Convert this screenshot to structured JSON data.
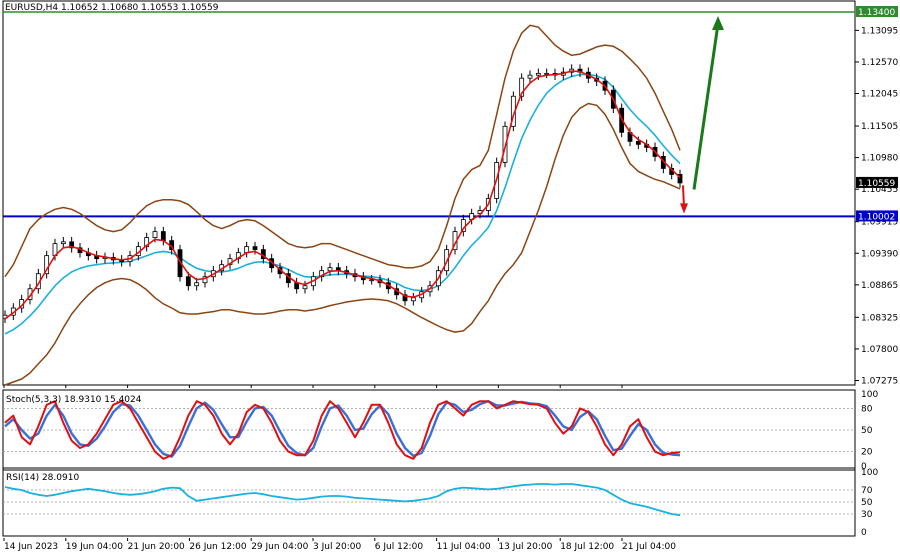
{
  "symbol_info": "EURUSD,H4  1.10652 1.10680 1.10553 1.10559",
  "colors": {
    "price_candles": "#000000",
    "bollinger": "#8b4513",
    "ma_fast": "#e01010",
    "ma_slow": "#1ab0e0",
    "resistance_line": "#2e8b2e",
    "support_line": "#0000cc",
    "arrow_up": "#1a7a1a",
    "arrow_down": "#e01010",
    "stoch_main": "#e01010",
    "stoch_signal": "#3a6fd8",
    "rsi": "#1ab0e0"
  },
  "chart_data": [
    {
      "type": "line",
      "panel": "price",
      "ylim": [
        1.072,
        1.135
      ],
      "y_ticks": [
        "1.13095",
        "1.12570",
        "1.12045",
        "1.11505",
        "1.10980",
        "1.10455",
        "1.09915",
        "1.09390",
        "1.08865",
        "1.08325",
        "1.07800",
        "1.07275"
      ],
      "x_tick_labels": [
        "14 Jun 2023",
        "19 Jun 04:00",
        "21 Jun 20:00",
        "26 Jun 12:00",
        "29 Jun 04:00",
        "3 Jul 20:00",
        "6 Jul 12:00",
        "11 Jul 04:00",
        "13 Jul 20:00",
        "18 Jul 12:00",
        "21 Jul 04:00"
      ],
      "horizontal_lines": [
        {
          "value": 1.134,
          "label": "1.13400",
          "style": "resistance"
        },
        {
          "value": 1.10002,
          "label": "1.10002",
          "style": "support"
        }
      ],
      "current_price": {
        "value": 1.10559,
        "label": "1.10559"
      },
      "close": [
        1.0836,
        1.0848,
        1.0862,
        1.088,
        1.0905,
        1.0935,
        1.0955,
        1.0958,
        1.0948,
        1.094,
        1.0935,
        1.093,
        1.0932,
        1.0928,
        1.0925,
        1.0935,
        1.095,
        1.0965,
        1.0975,
        1.096,
        1.0945,
        1.09,
        1.0885,
        1.089,
        1.09,
        1.091,
        1.092,
        1.093,
        1.094,
        1.095,
        1.0945,
        1.093,
        1.0915,
        1.0905,
        1.089,
        1.088,
        1.0885,
        1.09,
        1.091,
        1.0915,
        1.091,
        1.0905,
        1.09,
        1.0895,
        1.0895,
        1.089,
        1.088,
        1.087,
        1.086,
        1.0865,
        1.0875,
        1.0885,
        1.091,
        1.0945,
        1.0975,
        1.0995,
        1.1005,
        1.101,
        1.103,
        1.109,
        1.115,
        1.12,
        1.123,
        1.1235,
        1.1238,
        1.1238,
        1.1235,
        1.124,
        1.1245,
        1.124,
        1.123,
        1.1225,
        1.121,
        1.118,
        1.114,
        1.1125,
        1.112,
        1.1115,
        1.11,
        1.108,
        1.107,
        1.10559
      ],
      "series": [
        {
          "values_key": "ma_fast"
        },
        {
          "values_key": "ma_slow"
        },
        {
          "values_key": "bollinger_upper"
        },
        {
          "values_key": "bollinger_lower"
        }
      ],
      "ma_fast": [
        1.083,
        1.084,
        1.0852,
        1.0868,
        1.0888,
        1.0912,
        1.0935,
        1.0948,
        1.095,
        1.0946,
        1.094,
        1.0935,
        1.0933,
        1.093,
        1.0928,
        1.093,
        1.094,
        1.0952,
        1.0962,
        1.096,
        1.095,
        1.0925,
        1.0905,
        1.0895,
        1.0897,
        1.0904,
        1.0913,
        1.0922,
        1.0931,
        1.094,
        1.0942,
        1.0935,
        1.0924,
        1.0912,
        1.09,
        1.089,
        1.0887,
        1.0893,
        1.0902,
        1.0909,
        1.091,
        1.0907,
        1.0903,
        1.0899,
        1.0897,
        1.0893,
        1.0886,
        1.0877,
        1.0868,
        1.0866,
        1.0871,
        1.088,
        1.0897,
        1.0925,
        1.0955,
        1.098,
        1.0995,
        1.1003,
        1.102,
        1.1062,
        1.1115,
        1.1168,
        1.1205,
        1.1222,
        1.1232,
        1.1235,
        1.1236,
        1.1238,
        1.1242,
        1.1241,
        1.1235,
        1.1228,
        1.1217,
        1.1195,
        1.1162,
        1.114,
        1.1128,
        1.112,
        1.1108,
        1.1092,
        1.1078,
        1.1065
      ],
      "ma_slow": [
        1.0805,
        1.0812,
        1.0822,
        1.0835,
        1.085,
        1.0868,
        1.0885,
        1.0898,
        1.0908,
        1.0914,
        1.0918,
        1.092,
        1.0922,
        1.0923,
        1.0924,
        1.0926,
        1.093,
        1.0935,
        1.094,
        1.0942,
        1.094,
        1.0932,
        1.0922,
        1.0914,
        1.091,
        1.0908,
        1.0908,
        1.091,
        1.0914,
        1.092,
        1.0924,
        1.0925,
        1.0922,
        1.0918,
        1.0912,
        1.0905,
        1.09,
        1.0899,
        1.0901,
        1.0903,
        1.0904,
        1.0904,
        1.0903,
        1.0901,
        1.09,
        1.0898,
        1.0894,
        1.0889,
        1.0882,
        1.0878,
        1.0877,
        1.0879,
        1.0885,
        1.0898,
        1.0915,
        1.0935,
        1.0952,
        1.0966,
        1.0982,
        1.101,
        1.1048,
        1.109,
        1.113,
        1.116,
        1.1185,
        1.1205,
        1.1218,
        1.1227,
        1.1233,
        1.1236,
        1.1236,
        1.1234,
        1.1228,
        1.1215,
        1.1196,
        1.1178,
        1.1163,
        1.115,
        1.1135,
        1.1118,
        1.1102,
        1.1088
      ],
      "bollinger_upper": [
        1.09,
        1.092,
        1.095,
        1.098,
        1.0995,
        1.1005,
        1.1012,
        1.1015,
        1.1012,
        1.1005,
        1.0995,
        1.0985,
        1.0978,
        1.0975,
        1.0978,
        1.099,
        1.1005,
        1.1018,
        1.1025,
        1.1028,
        1.1028,
        1.1026,
        1.102,
        1.1008,
        1.0995,
        1.0985,
        1.098,
        1.0985,
        1.0992,
        1.0995,
        1.0993,
        1.0985,
        1.0975,
        1.0965,
        1.0955,
        1.095,
        1.0948,
        1.095,
        1.0955,
        1.0955,
        1.095,
        1.0945,
        1.094,
        1.0935,
        1.093,
        1.0925,
        1.092,
        1.0918,
        1.0915,
        1.0915,
        1.0918,
        1.0925,
        1.0945,
        1.0985,
        1.103,
        1.1062,
        1.1078,
        1.1085,
        1.111,
        1.117,
        1.123,
        1.1275,
        1.1305,
        1.1318,
        1.1315,
        1.13,
        1.1285,
        1.1275,
        1.1268,
        1.127,
        1.1276,
        1.1282,
        1.1285,
        1.1283,
        1.1275,
        1.1262,
        1.1248,
        1.123,
        1.1205,
        1.1175,
        1.1145,
        1.111
      ],
      "bollinger_lower": [
        1.072,
        1.0725,
        1.073,
        1.074,
        1.0755,
        1.077,
        1.079,
        1.0815,
        1.0838,
        1.0855,
        1.087,
        1.0882,
        1.089,
        1.0895,
        1.0897,
        1.0895,
        1.0888,
        1.0878,
        1.0865,
        1.0855,
        1.0848,
        1.084,
        1.0838,
        1.0838,
        1.084,
        1.0842,
        1.0845,
        1.0845,
        1.0842,
        1.084,
        1.0838,
        1.0838,
        1.084,
        1.0843,
        1.0845,
        1.0845,
        1.0843,
        1.0845,
        1.0848,
        1.0852,
        1.0855,
        1.0858,
        1.086,
        1.0862,
        1.0863,
        1.0862,
        1.086,
        1.0855,
        1.0848,
        1.084,
        1.0832,
        1.0825,
        1.0818,
        1.0812,
        1.0808,
        1.081,
        1.0822,
        1.0842,
        1.086,
        1.0885,
        1.0905,
        1.092,
        1.094,
        1.0975,
        1.101,
        1.105,
        1.1095,
        1.1135,
        1.1165,
        1.118,
        1.1188,
        1.1185,
        1.117,
        1.1145,
        1.1115,
        1.1088,
        1.1075,
        1.1068,
        1.1062,
        1.1058,
        1.1052,
        1.1046
      ],
      "annotations": [
        {
          "type": "arrow-up",
          "from_x_index": 81,
          "color_key": "arrow_up"
        },
        {
          "type": "arrow-down",
          "from_x_index": 80,
          "color_key": "arrow_down"
        }
      ]
    },
    {
      "type": "line",
      "panel": "stochastic",
      "title": "Stoch(5,3,3) 18.9310 15.4024",
      "ylim": [
        0,
        100
      ],
      "y_ticks": [
        "100",
        "80",
        "50",
        "20",
        "0"
      ],
      "series": [
        {
          "name": "main",
          "values": [
            60,
            70,
            40,
            30,
            55,
            85,
            90,
            60,
            35,
            25,
            30,
            45,
            65,
            85,
            90,
            80,
            60,
            40,
            20,
            10,
            15,
            40,
            70,
            90,
            85,
            70,
            45,
            30,
            45,
            75,
            85,
            80,
            60,
            35,
            20,
            15,
            15,
            35,
            70,
            90,
            80,
            60,
            40,
            60,
            85,
            85,
            60,
            30,
            15,
            10,
            25,
            60,
            85,
            90,
            80,
            70,
            85,
            90,
            90,
            80,
            85,
            90,
            88,
            86,
            85,
            80,
            60,
            45,
            55,
            80,
            75,
            55,
            30,
            15,
            30,
            55,
            65,
            40,
            20,
            15,
            18,
            19
          ]
        },
        {
          "name": "signal",
          "values": [
            55,
            65,
            50,
            38,
            45,
            70,
            85,
            70,
            45,
            30,
            28,
            38,
            55,
            75,
            86,
            84,
            70,
            50,
            30,
            17,
            13,
            28,
            55,
            80,
            88,
            78,
            58,
            40,
            40,
            62,
            80,
            82,
            70,
            48,
            28,
            18,
            15,
            25,
            55,
            80,
            84,
            70,
            50,
            52,
            72,
            84,
            72,
            45,
            25,
            14,
            18,
            42,
            72,
            88,
            85,
            75,
            78,
            86,
            90,
            84,
            84,
            87,
            89,
            87,
            86,
            83,
            70,
            55,
            50,
            68,
            76,
            65,
            42,
            22,
            24,
            42,
            58,
            50,
            30,
            18,
            16,
            15
          ]
        }
      ]
    },
    {
      "type": "line",
      "panel": "rsi",
      "title": "RSI(14) 28.0910",
      "ylim": [
        0,
        100
      ],
      "y_ticks": [
        "100",
        "70",
        "50",
        "30",
        "0"
      ],
      "series": [
        {
          "name": "RSI",
          "values": [
            75,
            72,
            70,
            65,
            62,
            60,
            62,
            65,
            68,
            70,
            72,
            70,
            68,
            65,
            63,
            62,
            63,
            65,
            68,
            72,
            74,
            73,
            60,
            52,
            54,
            56,
            58,
            60,
            62,
            64,
            65,
            63,
            60,
            58,
            56,
            54,
            55,
            57,
            59,
            60,
            60,
            59,
            57,
            56,
            55,
            54,
            53,
            52,
            51,
            52,
            54,
            56,
            60,
            68,
            72,
            74,
            73,
            72,
            71,
            72,
            74,
            76,
            78,
            79,
            80,
            80,
            79,
            80,
            80,
            78,
            76,
            74,
            70,
            62,
            54,
            48,
            45,
            42,
            38,
            34,
            30,
            28
          ]
        }
      ]
    }
  ]
}
